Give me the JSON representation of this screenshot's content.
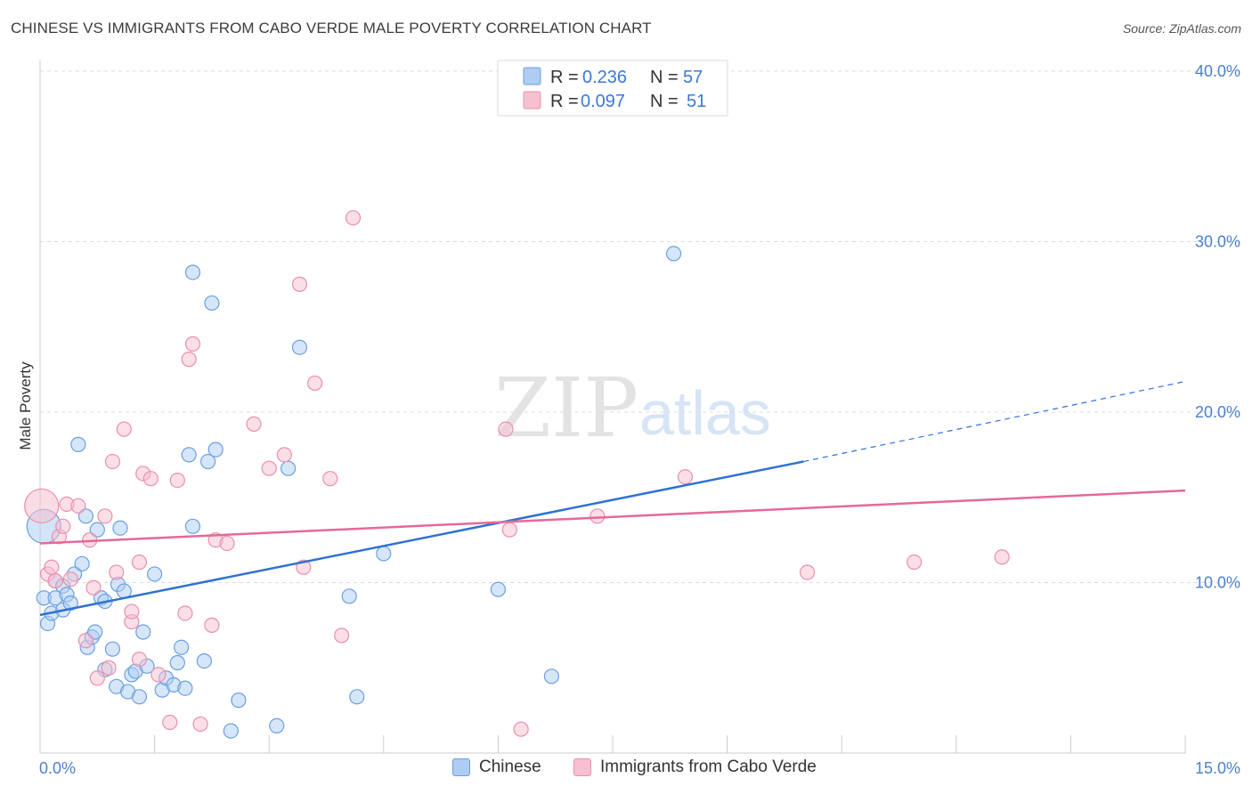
{
  "header": {
    "title": "CHINESE VS IMMIGRANTS FROM CABO VERDE MALE POVERTY CORRELATION CHART",
    "source": "Source: ZipAtlas.com"
  },
  "watermark": {
    "part1": "ZIP",
    "part2": "atlas"
  },
  "colors": {
    "blue_fill": "#aecdf3",
    "blue_stroke": "#6b9fe0",
    "blue_line": "#2f72d3",
    "pink_fill": "#f6c0d0",
    "pink_stroke": "#eb8fac",
    "pink_line": "#e5689a",
    "axis_label": "#4a7fd0"
  },
  "legend": {
    "rows": [
      {
        "r_label": "R =",
        "r_value": "0.236",
        "n_label": "N =",
        "n_value": "57"
      },
      {
        "r_label": "R =",
        "r_value": "0.097",
        "n_label": "N =",
        "n_value": "51"
      }
    ]
  },
  "bottom_legend": {
    "items": [
      "Chinese",
      "Immigrants from Cabo Verde"
    ]
  },
  "chart_data": {
    "type": "scatter",
    "title": "CHINESE VS IMMIGRANTS FROM CABO VERDE MALE POVERTY CORRELATION CHART",
    "xlabel": "",
    "ylabel": "Male Poverty",
    "xlim": [
      0,
      15
    ],
    "ylim": [
      0,
      40
    ],
    "x_tick_labels": [
      "0.0%",
      "15.0%"
    ],
    "y_ticks": [
      10,
      20,
      30,
      40
    ],
    "y_tick_labels": [
      "10.0%",
      "20.0%",
      "30.0%",
      "40.0%"
    ],
    "grid": true,
    "legend_position": "top-center",
    "series": [
      {
        "name": "Chinese",
        "R": 0.236,
        "N": 57,
        "trend": {
          "x0": 0,
          "y0": 8.1,
          "x1": 10.0,
          "y1": 17.1,
          "dash_to_x": 15,
          "dash_to_y": 21.8
        },
        "points": [
          [
            0.05,
            13.3,
            1
          ],
          [
            0.05,
            9.1,
            0
          ],
          [
            0.1,
            7.6,
            0
          ],
          [
            0.15,
            8.2,
            0
          ],
          [
            0.2,
            10.1,
            0
          ],
          [
            0.2,
            9.1,
            0
          ],
          [
            0.3,
            9.8,
            0
          ],
          [
            0.3,
            8.4,
            0
          ],
          [
            0.35,
            9.3,
            0
          ],
          [
            0.4,
            8.8,
            0
          ],
          [
            0.45,
            10.5,
            0
          ],
          [
            0.5,
            18.1,
            0
          ],
          [
            0.55,
            11.1,
            0
          ],
          [
            0.6,
            13.9,
            0
          ],
          [
            0.62,
            6.2,
            0
          ],
          [
            0.68,
            6.8,
            0
          ],
          [
            0.72,
            7.1,
            0
          ],
          [
            0.75,
            13.1,
            0
          ],
          [
            0.8,
            9.1,
            0
          ],
          [
            0.85,
            4.9,
            0
          ],
          [
            0.85,
            8.9,
            0
          ],
          [
            0.95,
            6.1,
            0
          ],
          [
            1.0,
            3.9,
            0
          ],
          [
            1.02,
            9.9,
            0
          ],
          [
            1.05,
            13.2,
            0
          ],
          [
            1.1,
            9.5,
            0
          ],
          [
            1.15,
            3.6,
            0
          ],
          [
            1.2,
            4.6,
            0
          ],
          [
            1.25,
            4.8,
            0
          ],
          [
            1.3,
            3.3,
            0
          ],
          [
            1.35,
            7.1,
            0
          ],
          [
            1.4,
            5.1,
            0
          ],
          [
            1.5,
            10.5,
            0
          ],
          [
            1.6,
            3.7,
            0
          ],
          [
            1.65,
            4.4,
            0
          ],
          [
            1.75,
            4.0,
            0
          ],
          [
            1.8,
            5.3,
            0
          ],
          [
            1.85,
            6.2,
            0
          ],
          [
            1.9,
            3.8,
            0
          ],
          [
            1.95,
            17.5,
            0
          ],
          [
            2.0,
            28.2,
            0
          ],
          [
            2.0,
            13.3,
            0
          ],
          [
            2.15,
            5.4,
            0
          ],
          [
            2.2,
            17.1,
            0
          ],
          [
            2.25,
            26.4,
            0
          ],
          [
            2.3,
            17.8,
            0
          ],
          [
            2.5,
            1.3,
            0
          ],
          [
            2.6,
            3.1,
            0
          ],
          [
            3.1,
            1.6,
            0
          ],
          [
            3.25,
            16.7,
            0
          ],
          [
            3.4,
            23.8,
            0
          ],
          [
            4.05,
            9.2,
            0
          ],
          [
            4.15,
            3.3,
            0
          ],
          [
            4.5,
            11.7,
            0
          ],
          [
            6.0,
            9.6,
            0
          ],
          [
            6.7,
            4.5,
            0
          ],
          [
            8.3,
            29.3,
            0
          ]
        ]
      },
      {
        "name": "Immigrants from Cabo Verde",
        "R": 0.097,
        "N": 51,
        "trend": {
          "x0": 0,
          "y0": 12.3,
          "x1": 15,
          "y1": 15.4
        },
        "points": [
          [
            0.02,
            14.5,
            1
          ],
          [
            0.1,
            10.5,
            0
          ],
          [
            0.15,
            10.9,
            0
          ],
          [
            0.2,
            10.1,
            0
          ],
          [
            0.25,
            12.7,
            0
          ],
          [
            0.3,
            13.3,
            0
          ],
          [
            0.35,
            14.6,
            0
          ],
          [
            0.4,
            10.2,
            0
          ],
          [
            0.5,
            14.5,
            0
          ],
          [
            0.6,
            6.6,
            0
          ],
          [
            0.65,
            12.5,
            0
          ],
          [
            0.7,
            9.7,
            0
          ],
          [
            0.75,
            4.4,
            0
          ],
          [
            0.85,
            13.9,
            0
          ],
          [
            0.9,
            5.0,
            0
          ],
          [
            0.95,
            17.1,
            0
          ],
          [
            1.0,
            10.6,
            0
          ],
          [
            1.1,
            19.0,
            0
          ],
          [
            1.2,
            7.7,
            0
          ],
          [
            1.2,
            8.3,
            0
          ],
          [
            1.3,
            11.2,
            0
          ],
          [
            1.3,
            5.5,
            0
          ],
          [
            1.35,
            16.4,
            0
          ],
          [
            1.45,
            16.1,
            0
          ],
          [
            1.55,
            4.6,
            0
          ],
          [
            1.7,
            1.8,
            0
          ],
          [
            1.8,
            16.0,
            0
          ],
          [
            1.9,
            8.2,
            0
          ],
          [
            1.95,
            23.1,
            0
          ],
          [
            2.0,
            24.0,
            0
          ],
          [
            2.1,
            1.7,
            0
          ],
          [
            2.25,
            7.5,
            0
          ],
          [
            2.3,
            12.5,
            0
          ],
          [
            2.45,
            12.3,
            0
          ],
          [
            2.8,
            19.3,
            0
          ],
          [
            3.0,
            16.7,
            0
          ],
          [
            3.2,
            17.5,
            0
          ],
          [
            3.4,
            27.5,
            0
          ],
          [
            3.45,
            10.9,
            0
          ],
          [
            3.6,
            21.7,
            0
          ],
          [
            3.8,
            16.1,
            0
          ],
          [
            3.95,
            6.9,
            0
          ],
          [
            4.1,
            31.4,
            0
          ],
          [
            6.1,
            19.0,
            0
          ],
          [
            6.15,
            13.1,
            0
          ],
          [
            6.3,
            1.4,
            0
          ],
          [
            7.3,
            13.9,
            0
          ],
          [
            8.45,
            16.2,
            0
          ],
          [
            10.05,
            10.6,
            0
          ],
          [
            11.45,
            11.2,
            0
          ],
          [
            12.6,
            11.5,
            0
          ]
        ]
      }
    ]
  }
}
